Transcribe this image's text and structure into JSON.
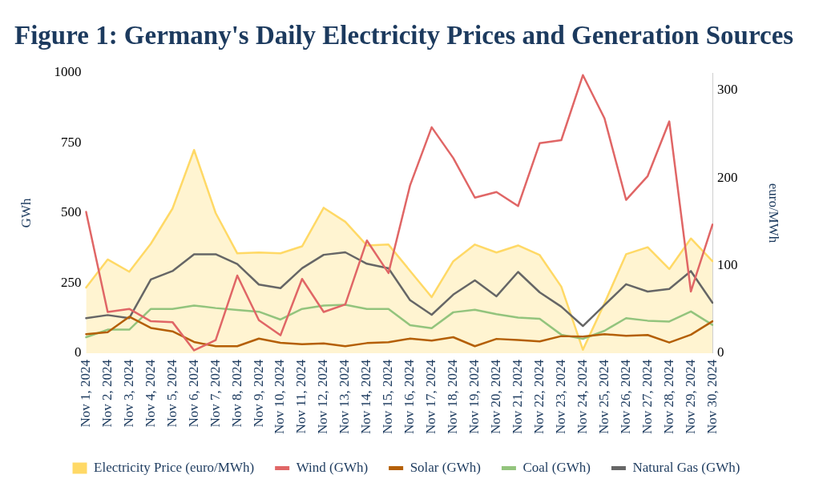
{
  "chart_data": {
    "type": "line",
    "title": "Figure 1: Germany's Daily Electricity Prices and Generation Sources",
    "ylabel": "GWh",
    "y2label": "euro/MWh",
    "categories": [
      "Nov 1, 2024",
      "Nov 2, 2024",
      "Nov 3, 2024",
      "Nov 4, 2024",
      "Nov 5, 2024",
      "Nov 6, 2024",
      "Nov 7, 2024",
      "Nov 8, 2024",
      "Nov 9, 2024",
      "Nov 10, 2024",
      "Nov 11, 2024",
      "Nov 12, 2024",
      "Nov 13, 2024",
      "Nov 14, 2024",
      "Nov 15, 2024",
      "Nov 16, 2024",
      "Nov 17, 2024",
      "Nov 18, 2024",
      "Nov 19, 2024",
      "Nov 20, 2024",
      "Nov 21, 2024",
      "Nov 22, 2024",
      "Nov 23, 2024",
      "Nov 24, 2024",
      "Nov 25, 2024",
      "Nov 26, 2024",
      "Nov 27, 2024",
      "Nov 28, 2024",
      "Nov 29, 2024",
      "Nov 30, 2024"
    ],
    "series": [
      {
        "name": "Electricity Price (euro/MWh)",
        "type": "area",
        "axis": "y2",
        "color": "#ffd966",
        "values": [
          75,
          107,
          93,
          125,
          165,
          232,
          160,
          114,
          115,
          114,
          122,
          166,
          150,
          123,
          124,
          94,
          64,
          105,
          124,
          115,
          123,
          112,
          76,
          4,
          57,
          113,
          121,
          96,
          131,
          105
        ]
      },
      {
        "name": "Wind (GWh)",
        "color": "#e06666",
        "values": [
          504,
          147,
          158,
          114,
          111,
          10,
          47,
          277,
          118,
          64,
          265,
          147,
          174,
          402,
          286,
          599,
          806,
          696,
          555,
          575,
          525,
          749,
          760,
          992,
          838,
          547,
          632,
          827,
          220,
          459
        ]
      },
      {
        "name": "Solar (GWh)",
        "color": "#b45f06",
        "values": [
          68,
          75,
          130,
          90,
          78,
          40,
          25,
          25,
          52,
          37,
          32,
          35,
          25,
          36,
          39,
          52,
          45,
          57,
          25,
          51,
          47,
          42,
          61,
          59,
          68,
          62,
          65,
          38,
          66,
          114
        ]
      },
      {
        "name": "Coal (GWh)",
        "color": "#93c47d",
        "values": [
          57,
          84,
          84,
          158,
          158,
          170,
          161,
          154,
          148,
          120,
          158,
          170,
          173,
          158,
          158,
          100,
          89,
          146,
          155,
          139,
          127,
          123,
          66,
          51,
          80,
          125,
          116,
          113,
          149,
          101
        ]
      },
      {
        "name": "Natural Gas (GWh)",
        "color": "#666666",
        "values": [
          125,
          136,
          125,
          263,
          293,
          353,
          353,
          318,
          245,
          232,
          303,
          351,
          360,
          319,
          303,
          189,
          137,
          209,
          260,
          203,
          290,
          217,
          166,
          97,
          172,
          246,
          220,
          229,
          293,
          180
        ]
      }
    ],
    "ylim": [
      0,
      1000
    ],
    "yticks": [
      0,
      250,
      500,
      750,
      1000
    ],
    "y2lim": [
      0,
      320
    ],
    "y2ticks": [
      0,
      100,
      200,
      300
    ],
    "grid": false,
    "legend": "bottom",
    "marker": "none",
    "line_style": "solid"
  }
}
